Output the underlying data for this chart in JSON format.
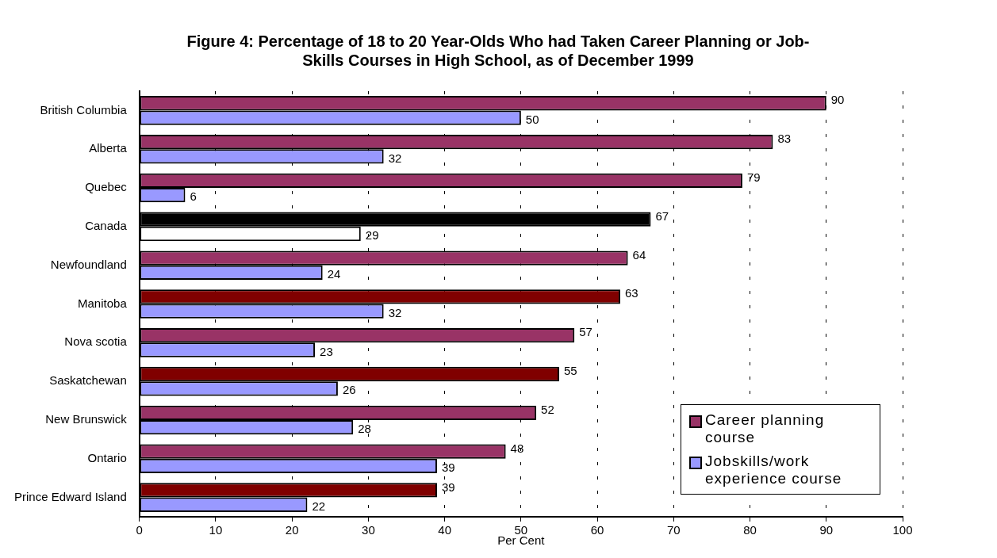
{
  "chart_data": {
    "type": "bar",
    "orientation": "horizontal",
    "title": "Figure 4:  Percentage of 18 to 20 Year-Olds Who had Taken Career Planning or Job-Skills Courses in High School, as of December 1999",
    "xlabel": "Per Cent",
    "categories": [
      "British Columbia",
      "Alberta",
      "Quebec",
      "Canada",
      "Newfoundland",
      "Manitoba",
      "Nova scotia",
      "Saskatchewan",
      "New Brunswick",
      "Ontario",
      "Prince Edward Island"
    ],
    "series": [
      {
        "name": "Career planning course",
        "color": "#993366",
        "colors": [
          "#993366",
          "#993366",
          "#993366",
          "#000000",
          "#993366",
          "#800000",
          "#993366",
          "#800000",
          "#993366",
          "#993366",
          "#800000"
        ],
        "values": [
          90,
          83,
          79,
          67,
          64,
          63,
          57,
          55,
          52,
          48,
          39
        ]
      },
      {
        "name": "Jobskills/work experience course",
        "color": "#9999ff",
        "colors": [
          "#9999ff",
          "#9999ff",
          "#9999ff",
          "#ffffff",
          "#9999ff",
          "#9999ff",
          "#9999ff",
          "#9999ff",
          "#9999ff",
          "#9999ff",
          "#9999ff"
        ],
        "values": [
          50,
          32,
          6,
          29,
          24,
          32,
          23,
          26,
          28,
          39,
          22
        ]
      }
    ],
    "xlim": [
      0,
      100
    ],
    "xticks": [
      0,
      10,
      20,
      30,
      40,
      50,
      60,
      70,
      80,
      90,
      100
    ],
    "grid": "x",
    "legend": "bottom right",
    "data_labels": true
  }
}
